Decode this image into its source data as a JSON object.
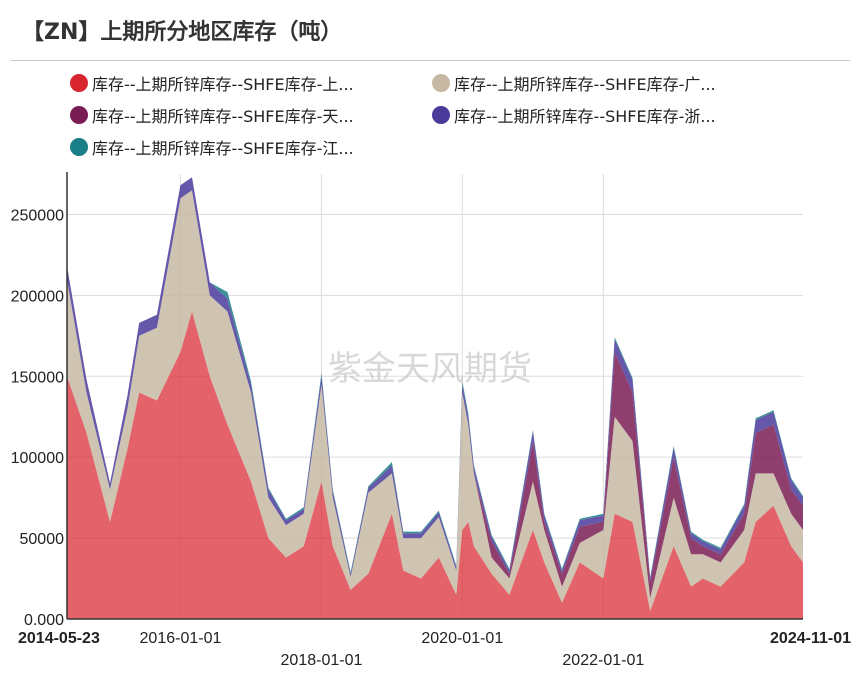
{
  "title": "【ZN】上期所分地区库存（吨）",
  "watermark": "紫金天风期货",
  "legend": [
    {
      "label": "库存--上期所锌库存--SHFE库存-上...",
      "color": "#d9252f"
    },
    {
      "label": "库存--上期所锌库存--SHFE库存-广...",
      "color": "#c7b8a3"
    },
    {
      "label": "库存--上期所锌库存--SHFE库存-天...",
      "color": "#7b1d55"
    },
    {
      "label": "库存--上期所锌库存--SHFE库存-浙...",
      "color": "#4a3a9a"
    },
    {
      "label": "库存--上期所锌库存--SHFE库存-江...",
      "color": "#1a7f86"
    }
  ],
  "chart_data": {
    "type": "area",
    "stacked": true,
    "grid": true,
    "ylim": [
      0,
      275000
    ],
    "yticks": [
      "0.000",
      "50000",
      "100000",
      "150000",
      "200000",
      "250000"
    ],
    "xlim": [
      "2014-05-23",
      "2024-11-01"
    ],
    "xticks_row1": [
      "2014-05-23",
      "2016-01-01",
      "2020-01-01",
      "2024-11-01"
    ],
    "xticks_row2": [
      "2018-01-01",
      "2022-01-01"
    ],
    "x": [
      "2014-05-23",
      "2014-09-01",
      "2015-01-01",
      "2015-04-01",
      "2015-06-01",
      "2015-09-01",
      "2016-01-01",
      "2016-03-01",
      "2016-06-01",
      "2016-09-01",
      "2017-01-01",
      "2017-04-01",
      "2017-07-01",
      "2017-10-01",
      "2018-01-01",
      "2018-03-01",
      "2018-06-01",
      "2018-09-01",
      "2019-01-01",
      "2019-03-01",
      "2019-06-01",
      "2019-09-01",
      "2019-12-01",
      "2020-01-01",
      "2020-02-01",
      "2020-03-01",
      "2020-06-01",
      "2020-09-01",
      "2021-01-01",
      "2021-03-01",
      "2021-06-01",
      "2021-09-01",
      "2022-01-01",
      "2022-03-01",
      "2022-06-01",
      "2022-09-01",
      "2023-01-01",
      "2023-04-01",
      "2023-06-01",
      "2023-09-01",
      "2024-01-01",
      "2024-03-01",
      "2024-06-01",
      "2024-09-01",
      "2024-11-01"
    ],
    "series": [
      {
        "name": "库存--上期所锌库存--SHFE库存-上...",
        "values": [
          150000,
          115000,
          60000,
          105000,
          140000,
          135000,
          165000,
          190000,
          150000,
          120000,
          85000,
          50000,
          38000,
          45000,
          85000,
          45000,
          18000,
          28000,
          65000,
          30000,
          25000,
          38000,
          15000,
          55000,
          60000,
          45000,
          28000,
          15000,
          55000,
          35000,
          10000,
          35000,
          25000,
          65000,
          60000,
          5000,
          45000,
          20000,
          25000,
          20000,
          35000,
          60000,
          70000,
          45000,
          35000
        ]
      },
      {
        "name": "库存--上期所锌库存--SHFE库存-广...",
        "values": [
          60000,
          25000,
          20000,
          25000,
          35000,
          45000,
          95000,
          75000,
          50000,
          70000,
          55000,
          25000,
          20000,
          20000,
          60000,
          30000,
          8000,
          50000,
          25000,
          20000,
          25000,
          25000,
          15000,
          85000,
          60000,
          45000,
          10000,
          10000,
          30000,
          20000,
          10000,
          12000,
          30000,
          60000,
          50000,
          8000,
          30000,
          20000,
          15000,
          15000,
          20000,
          30000,
          20000,
          20000,
          20000
        ]
      },
      {
        "name": "库存--上期所锌库存--SHFE库存-天...",
        "values": [
          0,
          0,
          0,
          0,
          0,
          0,
          0,
          0,
          0,
          0,
          0,
          0,
          0,
          0,
          0,
          0,
          0,
          0,
          0,
          0,
          0,
          0,
          0,
          0,
          0,
          0,
          10000,
          3000,
          25000,
          5000,
          8000,
          10000,
          5000,
          40000,
          30000,
          10000,
          25000,
          10000,
          5000,
          5000,
          10000,
          25000,
          30000,
          15000,
          15000
        ]
      },
      {
        "name": "库存--上期所锌库存--SHFE库存-浙...",
        "values": [
          8000,
          8000,
          4000,
          8000,
          8000,
          8000,
          8000,
          8000,
          8000,
          8000,
          5000,
          5000,
          3000,
          3000,
          5000,
          4000,
          2000,
          3000,
          5000,
          3000,
          3000,
          3000,
          2000,
          5000,
          5000,
          4000,
          3000,
          2000,
          6000,
          4000,
          2000,
          4000,
          4000,
          8000,
          8000,
          2000,
          6000,
          3000,
          3000,
          3000,
          5000,
          8000,
          8000,
          6000,
          5000
        ]
      },
      {
        "name": "库存--上期所锌库存--SHFE库存-江...",
        "values": [
          0,
          0,
          0,
          0,
          0,
          0,
          0,
          0,
          0,
          4000,
          2000,
          1000,
          1000,
          1000,
          2000,
          1000,
          1000,
          1000,
          2000,
          1000,
          1000,
          1000,
          1000,
          2000,
          2000,
          1000,
          1000,
          1000,
          1000,
          1000,
          1000,
          1000,
          1000,
          1000,
          1000,
          1000,
          1000,
          1000,
          1000,
          1000,
          1000,
          1000,
          1000,
          1000,
          1000
        ]
      }
    ]
  }
}
